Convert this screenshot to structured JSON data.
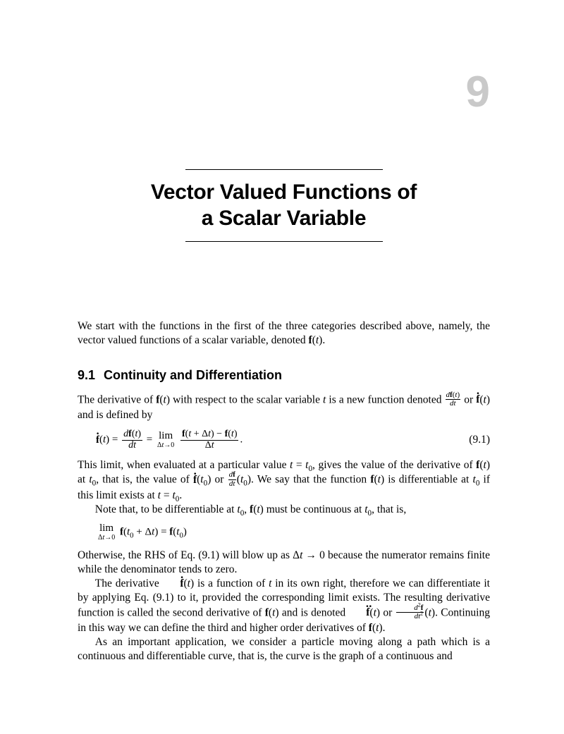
{
  "chapter": {
    "number": "9",
    "title_line1": "Vector Valued Functions of",
    "title_line2": "a Scalar Variable"
  },
  "colors": {
    "chapter_number": "#c9c9c9",
    "text": "#000000",
    "background": "#ffffff"
  },
  "typography": {
    "chapter_number_fontsize": 62,
    "title_fontsize": 30,
    "section_fontsize": 18,
    "body_fontsize": 15.5
  },
  "intro": "We start with the functions in the first of the three categories described above, namely, the vector valued functions of a scalar variable, denoted f(t).",
  "section": {
    "number": "9.1",
    "title": "Continuity and Differentiation"
  },
  "para1_a": "The derivative of ",
  "para1_b": " with respect to the scalar variable ",
  "para1_c": " is a new function denoted ",
  "para1_d": " or ",
  "para1_e": " and is defined by",
  "eq91_num": "(9.1)",
  "para2_a": "This limit, when evaluated at a particular value ",
  "para2_b": ", gives the value of the derivative of ",
  "para2_c": " at ",
  "para2_d": ", that is, the value of ",
  "para2_e": " or ",
  "para2_f": ". We say that the function ",
  "para2_g": " is differentiable at ",
  "para2_h": " if this limit exists at ",
  "para3_a": "Note that, to be differentiable at ",
  "para3_b": " must be continuous at ",
  "para3_c": ", that is,",
  "para4": "Otherwise, the RHS of Eq. (9.1) will blow up as Δt → 0 because the numerator remains finite while the denominator tends to zero.",
  "para5_a": "The derivative ",
  "para5_b": " is a function of ",
  "para5_c": " in its own right, therefore we can differentiate it by applying Eq. (9.1) to it, provided the corresponding limit exists. The resulting derivative function is called the second derivative of ",
  "para5_d": " and is denoted ",
  "para5_e": " or ",
  "para5_f": ". Continuing in this way we can define the third and higher order derivatives of ",
  "para6": "As an important application, we consider a particle moving along a path which is a continuous and differentiable curve, that is, the curve is the graph of a continuous and"
}
